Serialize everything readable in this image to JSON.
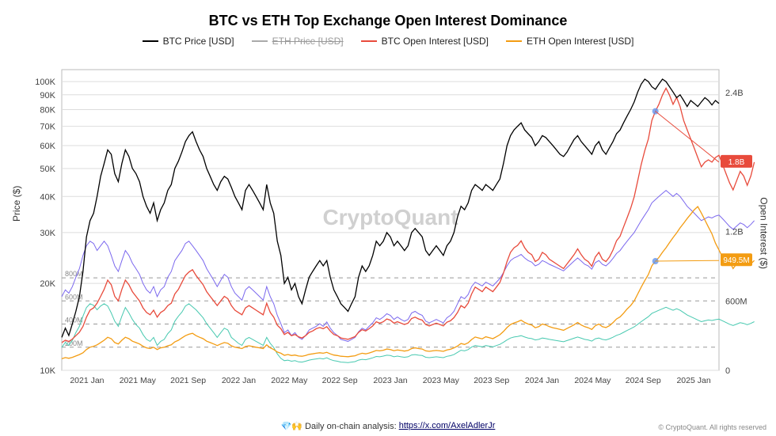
{
  "title": "BTC vs ETH Top Exchange Open Interest Dominance",
  "watermark": "CryptoQuant",
  "legend": {
    "btc_price": "BTC Price [USD]",
    "eth_price": "ETH Price [USD]",
    "btc_oi": "BTC Open Interest [USD]",
    "eth_oi": "ETH Open Interest [USD]"
  },
  "axes": {
    "ylabel_left": "Price ($)",
    "ylabel_right": "Open Interest ($)",
    "left_ticks": [
      {
        "v": 10000,
        "label": "10K"
      },
      {
        "v": 20000,
        "label": "20K"
      },
      {
        "v": 30000,
        "label": "30K"
      },
      {
        "v": 40000,
        "label": "40K"
      },
      {
        "v": 50000,
        "label": "50K"
      },
      {
        "v": 60000,
        "label": "60K"
      },
      {
        "v": 70000,
        "label": "70K"
      },
      {
        "v": 80000,
        "label": "80K"
      },
      {
        "v": 90000,
        "label": "90K"
      },
      {
        "v": 100000,
        "label": "100K"
      }
    ],
    "right_ticks": [
      {
        "v": 0,
        "label": "0"
      },
      {
        "v": 600000000,
        "label": "600M"
      },
      {
        "v": 1200000000,
        "label": "1.2B"
      },
      {
        "v": 1800000000,
        "label": "1.8B"
      },
      {
        "v": 2400000000,
        "label": "2.4B"
      }
    ],
    "x_ticks": [
      "2021 Jan",
      "2021 May",
      "2021 Sep",
      "2022 Jan",
      "2022 May",
      "2022 Sep",
      "2023 Jan",
      "2023 May",
      "2023 Sep",
      "2024 Jan",
      "2024 May",
      "2024 Sep",
      "2025 Jan"
    ],
    "left_scale": "log",
    "left_min": 10000,
    "left_max": 110000,
    "right_scale": "linear",
    "right_min": 0,
    "right_max": 2600000000,
    "ref_lines": [
      {
        "v": 200000000,
        "label": "200M"
      },
      {
        "v": 400000000,
        "label": "400M"
      },
      {
        "v": 600000000,
        "label": "600M"
      },
      {
        "v": 800000000,
        "label": "800M"
      }
    ]
  },
  "colors": {
    "btc_price": "#000000",
    "eth_price": "#808080",
    "btc_oi": "#e84b3c",
    "eth_oi": "#f39c12",
    "eth_price_2": "#7b68ee",
    "eth_price_3": "#48c9b0",
    "grid": "#dddddd",
    "bg": "#ffffff",
    "callout_btc": "#e84b3c",
    "callout_eth": "#f39c12",
    "marker": "#6495ed"
  },
  "callouts": {
    "btc_oi": "1.8B",
    "eth_oi": "949.5M"
  },
  "footer": {
    "prefix": "💎🙌 Daily on-chain analysis: ",
    "link_text": "https://x.com/AxelAdlerJr",
    "copyright": "© CryptoQuant. All rights reserved"
  },
  "series": {
    "btc_price": [
      13000,
      14000,
      13200,
      14500,
      16000,
      18000,
      22000,
      29000,
      33000,
      35000,
      40000,
      47000,
      52000,
      58000,
      56000,
      48000,
      45000,
      52000,
      58000,
      55000,
      50000,
      48000,
      45000,
      40000,
      37000,
      35000,
      38000,
      33000,
      36000,
      38000,
      42000,
      44000,
      50000,
      53000,
      57000,
      62000,
      65000,
      67000,
      62000,
      58000,
      55000,
      50000,
      47000,
      44000,
      42000,
      45000,
      47000,
      46000,
      43000,
      40000,
      38000,
      36000,
      42000,
      44000,
      42000,
      40000,
      38000,
      36000,
      44000,
      38000,
      35000,
      28000,
      25000,
      20000,
      21000,
      19000,
      20000,
      18000,
      17000,
      19000,
      21000,
      22000,
      23000,
      24000,
      23000,
      24000,
      21000,
      19000,
      18000,
      17000,
      16500,
      16000,
      17000,
      18000,
      21000,
      23000,
      22000,
      23000,
      25000,
      28000,
      27000,
      28000,
      30000,
      29000,
      27000,
      28000,
      27000,
      26000,
      27000,
      30000,
      31000,
      30000,
      29000,
      26000,
      25000,
      26000,
      27000,
      26000,
      25000,
      27000,
      28000,
      30000,
      34000,
      37000,
      36000,
      38000,
      42000,
      44000,
      43000,
      42000,
      44000,
      43000,
      42000,
      44000,
      46000,
      52000,
      60000,
      65000,
      68000,
      70000,
      72000,
      68000,
      66000,
      64000,
      60000,
      62000,
      65000,
      64000,
      62000,
      60000,
      58000,
      56000,
      55000,
      57000,
      60000,
      63000,
      65000,
      62000,
      60000,
      58000,
      56000,
      60000,
      62000,
      58000,
      56000,
      59000,
      62000,
      66000,
      68000,
      72000,
      76000,
      80000,
      85000,
      92000,
      98000,
      102000,
      100000,
      96000,
      94000,
      98000,
      102000,
      100000,
      96000,
      92000,
      88000,
      90000,
      86000,
      82000,
      86000,
      84000,
      82000,
      85000,
      88000,
      86000,
      83000,
      86000,
      84000
    ],
    "btc_oi": [
      240000000,
      260000000,
      250000000,
      270000000,
      300000000,
      330000000,
      380000000,
      460000000,
      520000000,
      540000000,
      580000000,
      640000000,
      700000000,
      780000000,
      740000000,
      640000000,
      600000000,
      700000000,
      780000000,
      740000000,
      680000000,
      640000000,
      600000000,
      540000000,
      500000000,
      480000000,
      520000000,
      460000000,
      500000000,
      520000000,
      560000000,
      580000000,
      660000000,
      700000000,
      760000000,
      820000000,
      850000000,
      870000000,
      820000000,
      780000000,
      740000000,
      680000000,
      640000000,
      600000000,
      560000000,
      600000000,
      640000000,
      620000000,
      560000000,
      520000000,
      500000000,
      480000000,
      540000000,
      560000000,
      540000000,
      520000000,
      500000000,
      480000000,
      580000000,
      500000000,
      460000000,
      390000000,
      360000000,
      310000000,
      328000000,
      300000000,
      310000000,
      290000000,
      280000000,
      300000000,
      328000000,
      340000000,
      360000000,
      370000000,
      360000000,
      378000000,
      340000000,
      310000000,
      300000000,
      280000000,
      274000000,
      268000000,
      280000000,
      292000000,
      328000000,
      352000000,
      340000000,
      360000000,
      384000000,
      420000000,
      408000000,
      420000000,
      444000000,
      434000000,
      408000000,
      420000000,
      408000000,
      396000000,
      408000000,
      448000000,
      460000000,
      444000000,
      434000000,
      396000000,
      384000000,
      396000000,
      408000000,
      396000000,
      384000000,
      416000000,
      428000000,
      456000000,
      500000000,
      560000000,
      540000000,
      580000000,
      660000000,
      720000000,
      700000000,
      680000000,
      720000000,
      700000000,
      680000000,
      720000000,
      760000000,
      840000000,
      940000000,
      1020000000,
      1060000000,
      1080000000,
      1120000000,
      1060000000,
      1020000000,
      1000000000,
      940000000,
      960000000,
      1020000000,
      1000000000,
      960000000,
      940000000,
      920000000,
      900000000,
      880000000,
      920000000,
      960000000,
      1000000000,
      1050000000,
      1000000000,
      960000000,
      940000000,
      900000000,
      980000000,
      1020000000,
      960000000,
      940000000,
      980000000,
      1040000000,
      1120000000,
      1160000000,
      1240000000,
      1320000000,
      1400000000,
      1500000000,
      1640000000,
      1780000000,
      1900000000,
      2000000000,
      2160000000,
      2240000000,
      2300000000,
      2380000000,
      2440000000,
      2380000000,
      2300000000,
      2360000000,
      2280000000,
      2160000000,
      2080000000,
      2000000000,
      1920000000,
      1840000000,
      1760000000,
      1800000000,
      1820000000,
      1800000000,
      1840000000,
      1860000000,
      1780000000,
      1700000000,
      1620000000,
      1560000000,
      1640000000,
      1720000000,
      1680000000,
      1600000000,
      1680000000,
      1800000000
    ],
    "eth_oi": [
      100000000,
      110000000,
      104000000,
      112000000,
      124000000,
      136000000,
      152000000,
      180000000,
      200000000,
      208000000,
      220000000,
      240000000,
      260000000,
      286000000,
      274000000,
      240000000,
      228000000,
      260000000,
      286000000,
      274000000,
      252000000,
      240000000,
      228000000,
      208000000,
      194000000,
      188000000,
      200000000,
      180000000,
      194000000,
      200000000,
      212000000,
      220000000,
      246000000,
      260000000,
      280000000,
      300000000,
      312000000,
      320000000,
      300000000,
      286000000,
      274000000,
      252000000,
      240000000,
      228000000,
      214000000,
      228000000,
      240000000,
      234000000,
      212000000,
      200000000,
      194000000,
      188000000,
      206000000,
      212000000,
      206000000,
      200000000,
      194000000,
      188000000,
      220000000,
      194000000,
      180000000,
      158000000,
      148000000,
      130000000,
      137000000,
      128000000,
      132000000,
      124000000,
      122000000,
      128000000,
      138000000,
      142000000,
      148000000,
      152000000,
      148000000,
      155000000,
      142000000,
      132000000,
      128000000,
      122000000,
      120000000,
      118000000,
      122000000,
      126000000,
      138000000,
      148000000,
      142000000,
      150000000,
      160000000,
      172000000,
      168000000,
      174000000,
      184000000,
      180000000,
      170000000,
      176000000,
      172000000,
      166000000,
      172000000,
      188000000,
      194000000,
      188000000,
      184000000,
      168000000,
      164000000,
      168000000,
      172000000,
      168000000,
      164000000,
      176000000,
      182000000,
      194000000,
      210000000,
      232000000,
      224000000,
      238000000,
      266000000,
      288000000,
      280000000,
      272000000,
      290000000,
      282000000,
      274000000,
      290000000,
      308000000,
      336000000,
      370000000,
      396000000,
      410000000,
      420000000,
      434000000,
      414000000,
      400000000,
      392000000,
      368000000,
      378000000,
      400000000,
      392000000,
      378000000,
      368000000,
      362000000,
      354000000,
      346000000,
      362000000,
      378000000,
      394000000,
      414000000,
      392000000,
      378000000,
      368000000,
      354000000,
      386000000,
      400000000,
      378000000,
      370000000,
      386000000,
      412000000,
      444000000,
      462000000,
      494000000,
      530000000,
      560000000,
      600000000,
      660000000,
      720000000,
      776000000,
      828000000,
      904000000,
      944000000,
      976000000,
      1020000000,
      1060000000,
      1104000000,
      1148000000,
      1188000000,
      1232000000,
      1272000000,
      1312000000,
      1350000000,
      1388000000,
      1416000000,
      1360000000,
      1300000000,
      1240000000,
      1180000000,
      1100000000,
      1040000000,
      980000000,
      960000000,
      940000000,
      880000000,
      920000000,
      960000000,
      1000000000,
      960000000,
      920000000,
      949500000
    ],
    "aux_purple": [
      18000,
      19000,
      18500,
      19500,
      21000,
      22500,
      25000,
      27000,
      28000,
      27500,
      26000,
      27000,
      28000,
      27000,
      25000,
      23000,
      22000,
      24000,
      26000,
      25000,
      23500,
      22500,
      21500,
      20000,
      19000,
      18500,
      19500,
      18000,
      19000,
      19500,
      21000,
      22000,
      24000,
      25000,
      26000,
      27500,
      28000,
      27000,
      26000,
      25000,
      24000,
      22500,
      21500,
      20500,
      19500,
      20500,
      21500,
      21000,
      19500,
      18500,
      18000,
      17500,
      19000,
      19500,
      19000,
      18500,
      18000,
      17500,
      19500,
      18000,
      17000,
      15500,
      14500,
      13500,
      13800,
      13200,
      13500,
      13000,
      12800,
      13200,
      13800,
      14000,
      14200,
      14500,
      14200,
      14700,
      14000,
      13500,
      13200,
      12800,
      12700,
      12600,
      12800,
      13000,
      13600,
      14000,
      13800,
      14200,
      14600,
      15200,
      15000,
      15300,
      15700,
      15500,
      15000,
      15300,
      15000,
      14800,
      15000,
      15800,
      16000,
      15700,
      15500,
      14800,
      14600,
      14800,
      15000,
      14800,
      14600,
      15200,
      15500,
      16000,
      17000,
      18000,
      17700,
      18300,
      19500,
      20200,
      19900,
      19600,
      20200,
      19900,
      19600,
      20200,
      20800,
      21800,
      23000,
      24000,
      24500,
      24800,
      25200,
      24500,
      24000,
      23700,
      23000,
      23300,
      24000,
      23700,
      23300,
      23000,
      22700,
      22400,
      22100,
      22700,
      23300,
      23900,
      24500,
      23900,
      23300,
      23000,
      22400,
      23600,
      24000,
      23300,
      23000,
      23600,
      24400,
      25400,
      26000,
      27000,
      28000,
      29000,
      30000,
      31500,
      33000,
      34500,
      36000,
      38000,
      39000,
      40000,
      41000,
      42000,
      41000,
      40000,
      41000,
      40000,
      38500,
      37000,
      36000,
      35000,
      34000,
      33000,
      33500,
      34000,
      33700,
      34200,
      34500,
      33500,
      32500,
      31500,
      30800,
      31600,
      32400,
      32000,
      31200,
      32000,
      33000
    ],
    "aux_teal": [
      12000,
      12500,
      12200,
      12700,
      13500,
      14200,
      15400,
      16500,
      17000,
      16800,
      16200,
      16700,
      17000,
      16700,
      15800,
      14800,
      14200,
      15400,
      16500,
      15800,
      15000,
      14400,
      14000,
      13300,
      12800,
      12600,
      13000,
      12200,
      12600,
      12800,
      13400,
      13800,
      14800,
      15400,
      15900,
      16700,
      17000,
      16600,
      16200,
      15700,
      15200,
      14500,
      14000,
      13500,
      13000,
      13500,
      14000,
      13800,
      13000,
      12700,
      12400,
      12200,
      12800,
      13000,
      12800,
      12600,
      12400,
      12200,
      13000,
      12400,
      12000,
      11400,
      11000,
      10800,
      10850,
      10750,
      10800,
      10700,
      10680,
      10750,
      10850,
      10900,
      10950,
      11000,
      10950,
      11050,
      10900,
      10800,
      10750,
      10680,
      10660,
      10640,
      10680,
      10720,
      10850,
      10920,
      10880,
      10960,
      11050,
      11170,
      11140,
      11200,
      11280,
      11250,
      11140,
      11200,
      11140,
      11100,
      11140,
      11300,
      11340,
      11280,
      11250,
      11100,
      11060,
      11100,
      11140,
      11100,
      11060,
      11180,
      11240,
      11340,
      11540,
      11740,
      11680,
      11800,
      12040,
      12180,
      12120,
      12060,
      12180,
      12120,
      12060,
      12180,
      12300,
      12500,
      12740,
      12940,
      13040,
      13100,
      13180,
      13040,
      12940,
      12880,
      12740,
      12800,
      12940,
      12880,
      12800,
      12740,
      12680,
      12620,
      12560,
      12680,
      12800,
      12920,
      13040,
      12920,
      12800,
      12740,
      12620,
      12860,
      12940,
      12800,
      12740,
      12860,
      13020,
      13220,
      13340,
      13540,
      13740,
      13940,
      14140,
      14440,
      14740,
      15040,
      15340,
      15740,
      15940,
      16140,
      16340,
      16540,
      16340,
      16140,
      16340,
      16140,
      15840,
      15540,
      15340,
      15140,
      14940,
      14740,
      14840,
      14940,
      14880,
      14980,
      15040,
      14840,
      14640,
      14440,
      14300,
      14460,
      14620,
      14540,
      14380,
      14540,
      14740
    ]
  },
  "styling": {
    "line_width_price": 1.2,
    "line_width_oi": 1.2,
    "title_fontsize": 18,
    "legend_fontsize": 12,
    "axis_fontsize": 11
  }
}
